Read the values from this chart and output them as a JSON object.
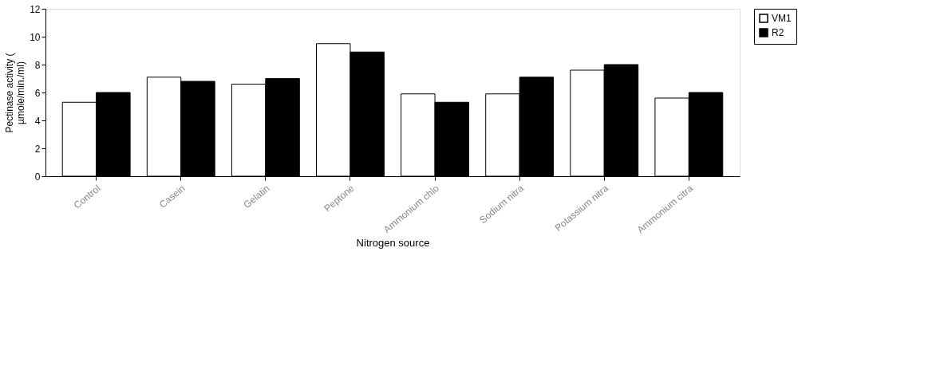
{
  "chart_data": {
    "type": "bar",
    "xlabel": "Nitrogen source",
    "ylabel": "Pectinase activity (µmole/min./ml)",
    "categories": [
      "Control",
      "Casein",
      "Gelatin",
      "Peptone",
      "Ammonium chlo",
      "Sodium nitra",
      "Potassium nitra",
      "Ammonium citra"
    ],
    "series": [
      {
        "name": "VM1",
        "color": "#ffffff",
        "values": [
          5.3,
          7.1,
          6.6,
          9.5,
          5.9,
          5.9,
          7.6,
          5.6
        ]
      },
      {
        "name": "R2",
        "color": "#000000",
        "values": [
          6.0,
          6.8,
          7.0,
          8.9,
          5.3,
          7.1,
          8.0,
          6.0
        ]
      }
    ],
    "ylim": [
      0,
      12
    ],
    "yticks": [
      0,
      2,
      4,
      6,
      8,
      10,
      12
    ],
    "grid": false,
    "legend": "right"
  }
}
